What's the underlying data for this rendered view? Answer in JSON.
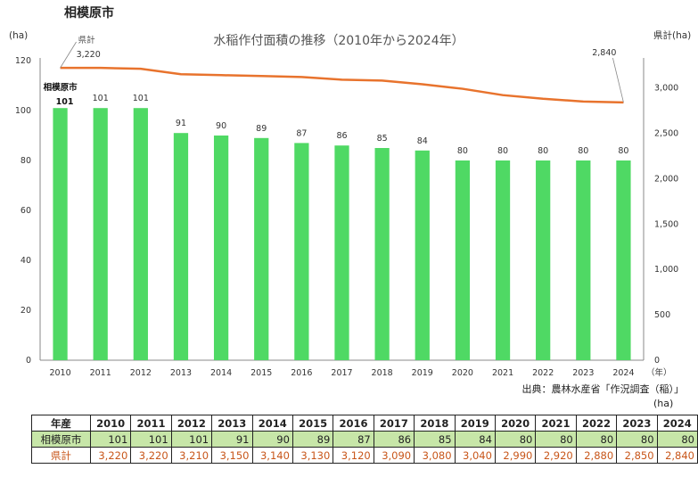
{
  "page_title": "相模原市",
  "source": "出典：農林水産省「作況調査（稲）」",
  "table_unit": "(ha)",
  "table": {
    "header_label": "年産",
    "years": [
      "2010",
      "2011",
      "2012",
      "2013",
      "2014",
      "2015",
      "2016",
      "2017",
      "2018",
      "2019",
      "2020",
      "2021",
      "2022",
      "2023",
      "2024"
    ],
    "city_label": "相模原市",
    "city_values": [
      "101",
      "101",
      "101",
      "91",
      "90",
      "89",
      "87",
      "86",
      "85",
      "84",
      "80",
      "80",
      "80",
      "80",
      "80"
    ],
    "total_label": "県計",
    "total_values": [
      "3,220",
      "3,220",
      "3,210",
      "3,150",
      "3,140",
      "3,130",
      "3,120",
      "3,090",
      "3,080",
      "3,040",
      "2,990",
      "2,920",
      "2,880",
      "2,850",
      "2,840"
    ]
  },
  "colors": {
    "bar": "#4fd964",
    "line": "#e8732d",
    "total_text": "#c8561a",
    "table_green": "#c7e6a8"
  },
  "chart_data": {
    "type": "bar",
    "title": "水稲作付面積の推移（2010年から2024年）",
    "categories": [
      "2010",
      "2011",
      "2012",
      "2013",
      "2014",
      "2015",
      "2016",
      "2017",
      "2018",
      "2019",
      "2020",
      "2021",
      "2022",
      "2023",
      "2024"
    ],
    "x_unit": "（年）",
    "y_left_unit": "(ha)",
    "y_right_unit": "県計(ha)",
    "ylim_left": [
      0,
      120
    ],
    "yticks_left": [
      0,
      20,
      40,
      60,
      80,
      100,
      120
    ],
    "ylim_right": [
      0,
      3300
    ],
    "yticks_right": [
      0,
      500,
      1000,
      1500,
      2000,
      2500,
      3000
    ],
    "yticklabels_right": [
      "0",
      "500",
      "1,000",
      "1,500",
      "2,000",
      "2,500",
      "3,000"
    ],
    "grid": false,
    "series": [
      {
        "name": "相模原市",
        "type": "bar",
        "axis": "left",
        "values": [
          101,
          101,
          101,
          91,
          90,
          89,
          87,
          86,
          85,
          84,
          80,
          80,
          80,
          80,
          80
        ],
        "labels": [
          "101",
          "101",
          "101",
          "91",
          "90",
          "89",
          "87",
          "86",
          "85",
          "84",
          "80",
          "80",
          "80",
          "80",
          "80"
        ]
      },
      {
        "name": "県計",
        "type": "line",
        "axis": "right",
        "values": [
          3220,
          3220,
          3210,
          3150,
          3140,
          3130,
          3120,
          3090,
          3080,
          3040,
          2990,
          2920,
          2880,
          2850,
          2840
        ],
        "end_labels": [
          "3,220",
          "2,840"
        ]
      }
    ]
  }
}
